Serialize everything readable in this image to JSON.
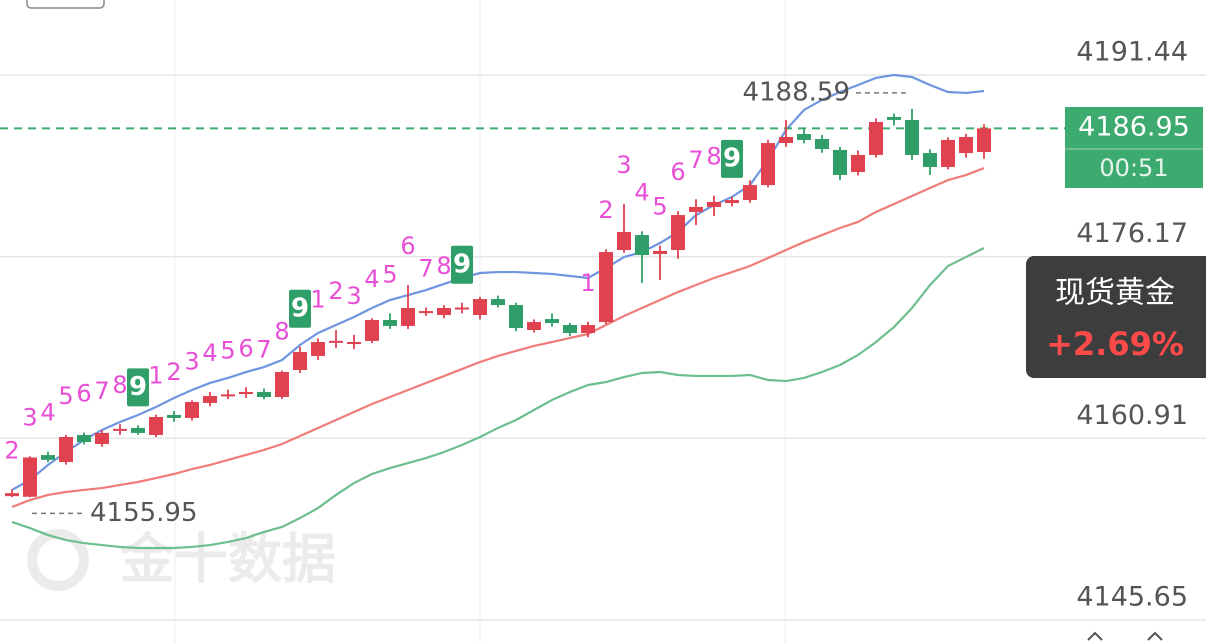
{
  "chart_data": {
    "type": "candlestick",
    "up_color": "#e0424f",
    "down_color": "#2f9e68",
    "open": [
      4156.05,
      4156.0,
      4159.5,
      4158.92,
      4161.19,
      4160.43,
      4161.6,
      4161.78,
      4161.19,
      4162.87,
      4162.62,
      4163.88,
      4164.5,
      4164.7,
      4164.8,
      4164.38,
      4166.65,
      4167.83,
      4169.0,
      4168.9,
      4169.09,
      4170.85,
      4170.35,
      4171.5,
      4171.27,
      4171.8,
      4171.27,
      4172.61,
      4172.11,
      4170.01,
      4170.93,
      4170.43,
      4169.76,
      4170.68,
      4176.73,
      4177.99,
      4176.4,
      4176.73,
      4179.93,
      4180.35,
      4180.68,
      4180.93,
      4182.19,
      4185.72,
      4186.48,
      4186.06,
      4185.14,
      4183.29,
      4184.72,
      4187.91,
      4187.66,
      4184.88,
      4183.71,
      4184.88,
      4184.97
    ],
    "high": [
      4156.6,
      4159.4,
      4159.8,
      4161.2,
      4161.4,
      4161.6,
      4162.1,
      4162.0,
      4162.9,
      4163.2,
      4164.1,
      4164.8,
      4165.0,
      4165.2,
      4165.1,
      4166.6,
      4168.6,
      4169.3,
      4170.0,
      4169.6,
      4171.0,
      4171.4,
      4173.79,
      4171.9,
      4172.1,
      4172.3,
      4172.8,
      4172.9,
      4172.3,
      4170.9,
      4171.4,
      4170.6,
      4170.7,
      4176.8,
      4180.6,
      4178.3,
      4177.1,
      4180.0,
      4181.0,
      4181.3,
      4181.2,
      4182.6,
      4186.0,
      4187.66,
      4187.0,
      4186.4,
      4185.4,
      4185.1,
      4187.8,
      4188.2,
      4188.59,
      4185.2,
      4186.2,
      4186.5,
      4187.3
    ],
    "low": [
      4155.97,
      4155.95,
      4158.9,
      4158.7,
      4160.4,
      4160.2,
      4161.2,
      4161.2,
      4161.0,
      4162.3,
      4162.4,
      4163.6,
      4164.2,
      4164.3,
      4164.2,
      4164.2,
      4166.4,
      4167.5,
      4168.5,
      4168.4,
      4168.9,
      4170.1,
      4170.1,
      4171.2,
      4171.0,
      4171.4,
      4170.9,
      4171.9,
      4169.9,
      4169.8,
      4170.3,
      4169.5,
      4169.4,
      4170.5,
      4176.5,
      4173.96,
      4174.21,
      4176.0,
      4178.83,
      4179.6,
      4180.4,
      4180.7,
      4182.0,
      4185.4,
      4185.7,
      4184.9,
      4182.6,
      4183.0,
      4184.5,
      4187.2,
      4184.3,
      4183.04,
      4183.5,
      4184.5,
      4184.4
    ],
    "close": [
      4156.3,
      4159.3,
      4159.1,
      4161.02,
      4160.6,
      4161.36,
      4161.7,
      4161.36,
      4162.7,
      4162.62,
      4163.96,
      4164.47,
      4164.6,
      4164.8,
      4164.38,
      4166.48,
      4168.16,
      4169.0,
      4169.1,
      4169.0,
      4170.85,
      4170.35,
      4171.86,
      4171.6,
      4171.86,
      4171.9,
      4172.61,
      4172.11,
      4170.18,
      4170.68,
      4170.6,
      4169.76,
      4170.43,
      4176.56,
      4178.25,
      4176.31,
      4176.65,
      4179.67,
      4180.35,
      4180.77,
      4180.93,
      4182.19,
      4185.72,
      4186.23,
      4185.98,
      4185.22,
      4183.04,
      4184.72,
      4187.49,
      4187.66,
      4184.72,
      4183.71,
      4185.98,
      4186.23,
      4186.95
    ],
    "series": [
      {
        "color": "#6f95e0",
        "values": [
          4156.57,
          4157.41,
          4158.67,
          4159.76,
          4160.77,
          4161.61,
          4162.28,
          4162.87,
          4163.54,
          4164.3,
          4164.97,
          4165.56,
          4165.98,
          4166.48,
          4166.9,
          4167.49,
          4168.75,
          4169.76,
          4170.43,
          4171.1,
          4171.86,
          4172.53,
          4172.95,
          4173.37,
          4173.88,
          4174.38,
          4174.8,
          4174.88,
          4174.88,
          4174.8,
          4174.72,
          4174.55,
          4174.38,
          4175.22,
          4176.14,
          4176.56,
          4177.32,
          4178.25,
          4179.67,
          4180.51,
          4181.19,
          4182.19,
          4184.3,
          4186.82,
          4188.5,
          4189.34,
          4190.01,
          4190.6,
          4191.19,
          4191.44,
          4191.27,
          4190.6,
          4190.01,
          4189.93,
          4190.09
        ]
      },
      {
        "color": "#ef7c78",
        "values": [
          4155.14,
          4155.72,
          4156.15,
          4156.4,
          4156.57,
          4156.73,
          4156.99,
          4157.24,
          4157.57,
          4157.91,
          4158.33,
          4158.67,
          4159.09,
          4159.51,
          4159.93,
          4160.43,
          4161.1,
          4161.78,
          4162.45,
          4163.12,
          4163.79,
          4164.38,
          4164.97,
          4165.56,
          4166.14,
          4166.73,
          4167.32,
          4167.83,
          4168.25,
          4168.67,
          4169.0,
          4169.34,
          4169.67,
          4170.43,
          4171.19,
          4171.86,
          4172.53,
          4173.2,
          4173.79,
          4174.38,
          4174.88,
          4175.39,
          4176.06,
          4176.73,
          4177.4,
          4177.99,
          4178.58,
          4179.09,
          4179.93,
          4180.6,
          4181.27,
          4181.94,
          4182.61,
          4183.03,
          4183.62
        ]
      },
      {
        "color": "#6cbf8e",
        "values": [
          4153.88,
          4153.37,
          4152.78,
          4152.36,
          4152.11,
          4151.94,
          4151.78,
          4151.69,
          4151.69,
          4151.69,
          4151.78,
          4151.94,
          4152.2,
          4152.53,
          4153.04,
          4153.46,
          4154.21,
          4155.05,
          4156.15,
          4157.15,
          4157.91,
          4158.41,
          4158.83,
          4159.25,
          4159.76,
          4160.35,
          4161.02,
          4161.78,
          4162.45,
          4163.29,
          4164.13,
          4164.8,
          4165.39,
          4165.64,
          4166.06,
          4166.4,
          4166.48,
          4166.23,
          4166.15,
          4166.15,
          4166.15,
          4166.23,
          4165.81,
          4165.72,
          4165.98,
          4166.48,
          4167.07,
          4167.91,
          4169.0,
          4170.26,
          4171.86,
          4173.79,
          4175.39,
          4176.14,
          4176.9
        ]
      }
    ],
    "td_labels": [
      "2",
      "3",
      "4",
      "5",
      "6",
      "7",
      "8",
      "9",
      "1",
      "2",
      "3",
      "4",
      "5",
      "6",
      "7",
      "8",
      "9",
      "1",
      "2",
      "3",
      "4",
      "5",
      "6",
      "7",
      "8",
      "9",
      null,
      null,
      null,
      null,
      null,
      null,
      "1",
      "2",
      "3",
      "4",
      "5",
      "6",
      "7",
      "8",
      "9",
      null,
      null,
      null,
      null,
      null,
      null,
      null,
      null,
      null,
      null,
      null,
      null,
      null,
      null
    ],
    "td_color": "#e84fd6",
    "max_label": 4188.59,
    "min_label": 4155.95,
    "last_price": 4186.95,
    "countdown": "00:51",
    "ylim": [
      4143.71,
      4197.74
    ],
    "yticks": [
      4145.65,
      4160.91,
      4176.17,
      4191.44
    ],
    "grid": true,
    "instrument": "现货黄金",
    "change": "+2.69%",
    "watermark": "金十数据"
  }
}
